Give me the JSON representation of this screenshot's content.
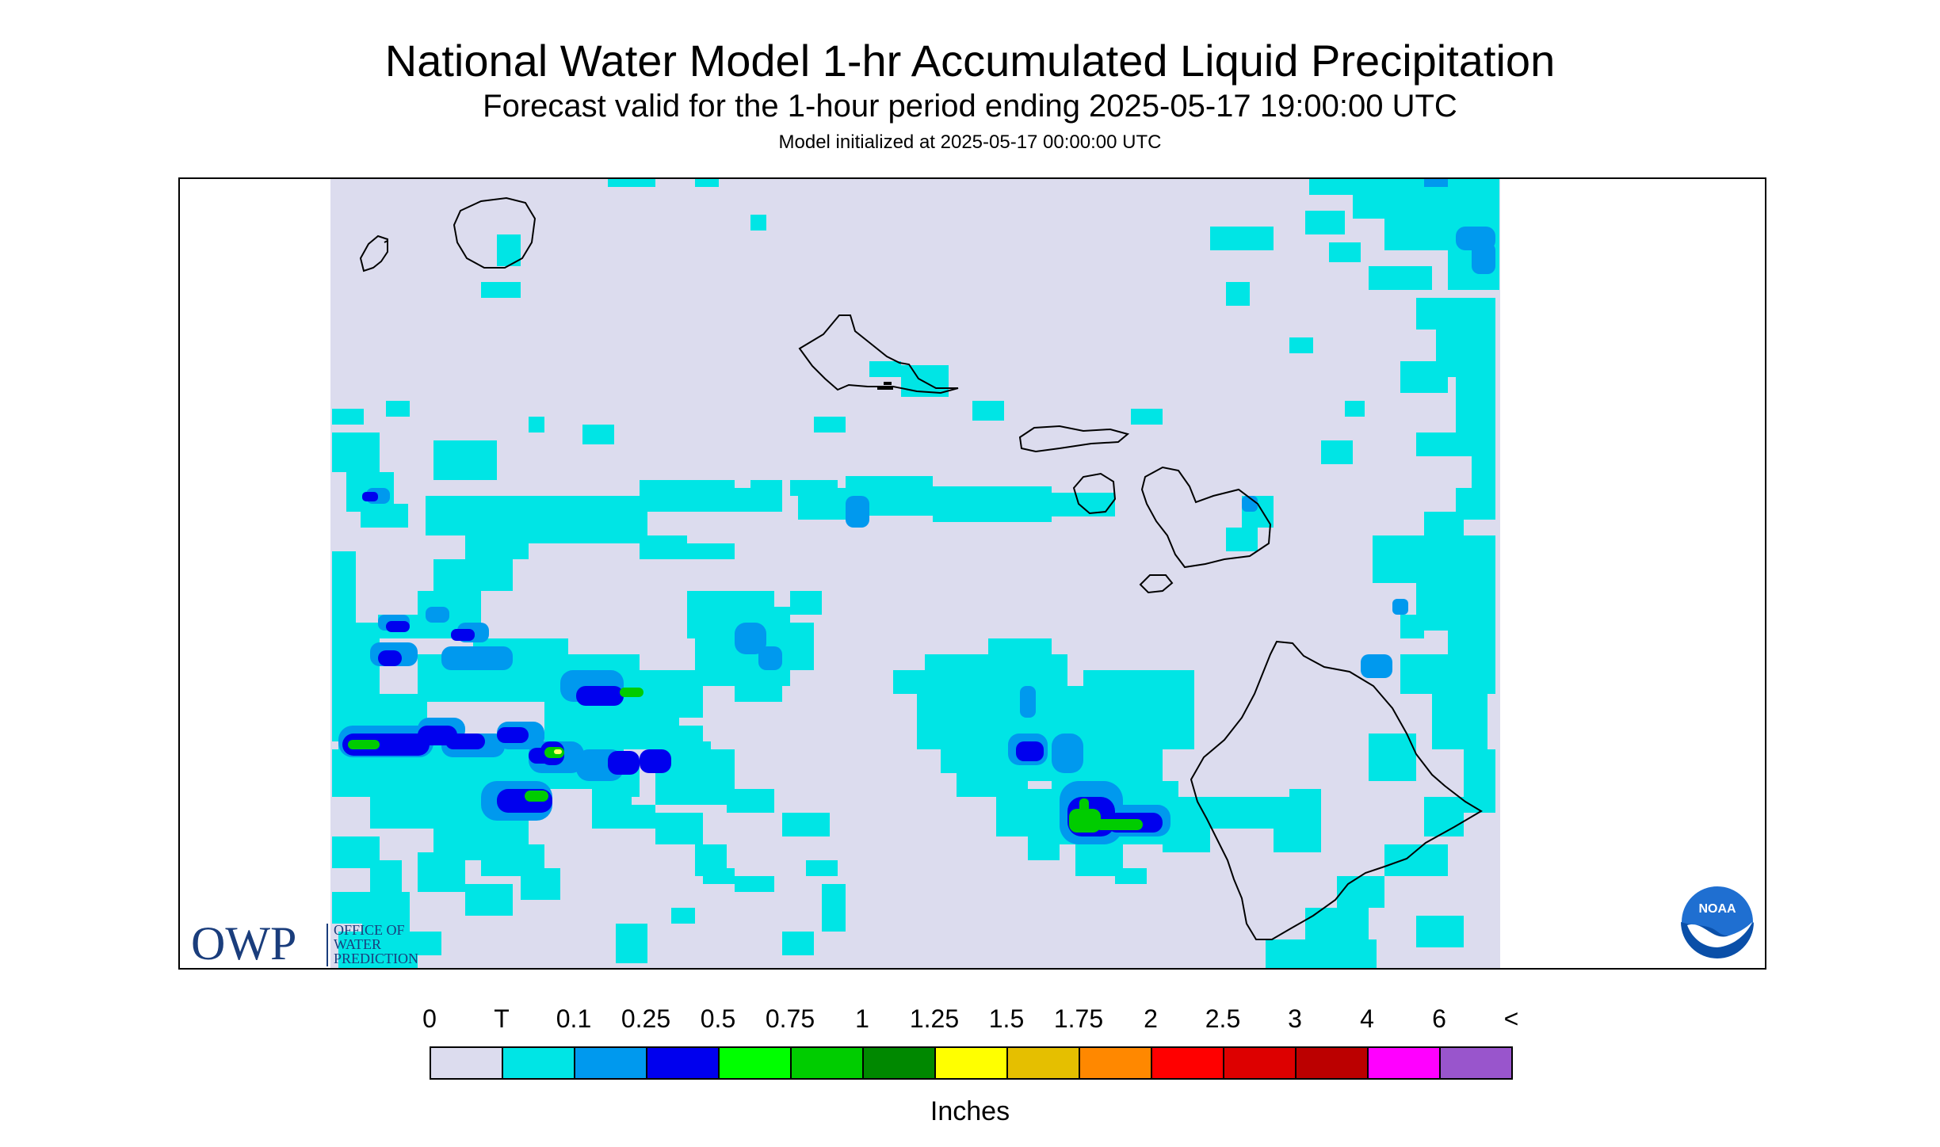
{
  "header": {
    "title": "National Water Model 1-hr Accumulated Liquid Precipitation",
    "subtitle": "Forecast valid for the 1-hour period ending 2025-05-17 19:00:00 UTC",
    "init": "Model initialized at 2025-05-17 00:00:00 UTC"
  },
  "logos": {
    "owp_letters": "OWP",
    "owp_line1": "OFFICE OF",
    "owp_line2": "WATER",
    "owp_line3": "PREDICTION",
    "noaa_text": "NOAA"
  },
  "legend": {
    "ticks": [
      "0",
      "T",
      "0.1",
      "0.25",
      "0.5",
      "0.75",
      "1",
      "1.25",
      "1.5",
      "1.75",
      "2",
      "2.5",
      "3",
      "4",
      "6",
      "<"
    ],
    "colors": [
      "#dcdcee",
      "#00e5e5",
      "#0099ee",
      "#0000ee",
      "#00ff00",
      "#00cc00",
      "#008800",
      "#ffff00",
      "#e5bf00",
      "#ff8800",
      "#ff0000",
      "#dd0000",
      "#bb0000",
      "#ff00ff",
      "#9955cc"
    ],
    "units": "Inches"
  },
  "map_colors": {
    "background": "#dcdcee",
    "trace": "#00e5e5",
    "light": "#0099ee",
    "moderate": "#0000ee",
    "heavy": "#00cc00",
    "outline": "#000000"
  }
}
